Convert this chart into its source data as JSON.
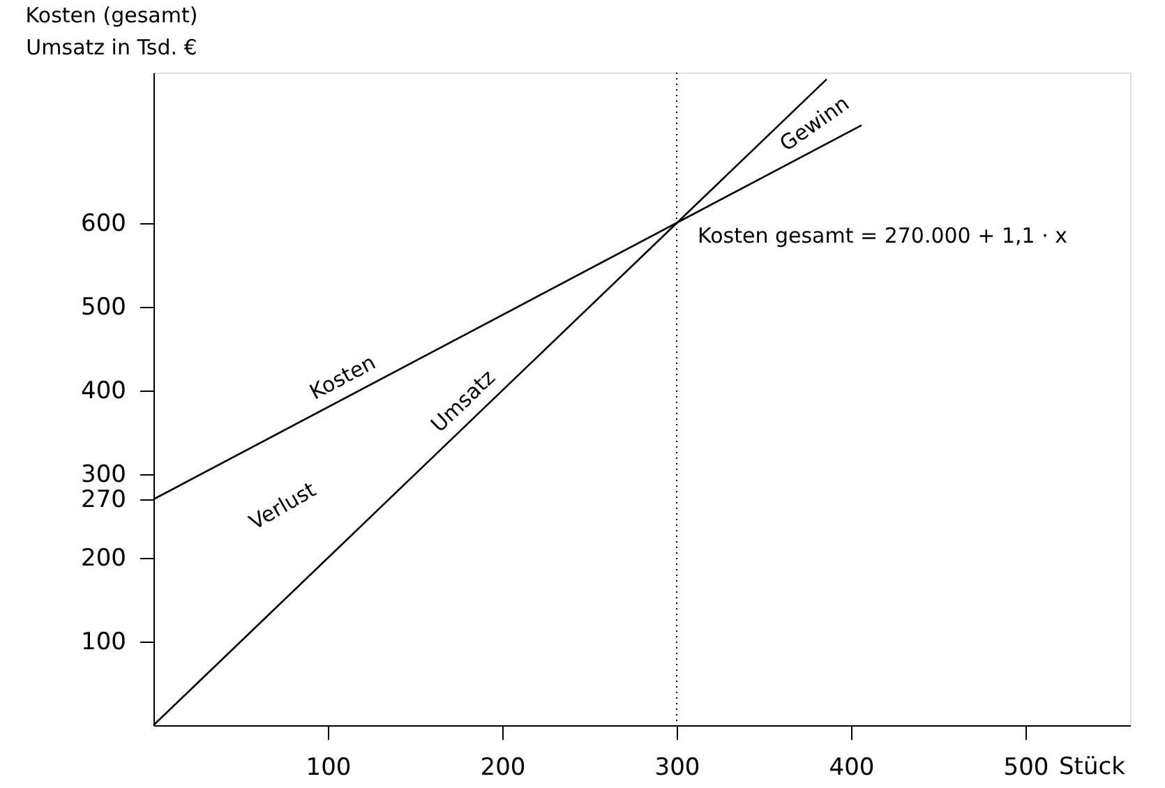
{
  "chart_data": {
    "type": "line",
    "xlabel": "Stück",
    "ylabel": "Kosten (gesamt)\nUmsatz in Tsd. €",
    "series": [
      {
        "name": "Kosten",
        "color": "#000000",
        "x": [
          0,
          406
        ],
        "values": [
          270,
          717
        ]
      },
      {
        "name": "Umsatz",
        "color": "#000000",
        "x": [
          0,
          386
        ],
        "values": [
          0,
          772
        ]
      }
    ],
    "xlim": [
      0,
      560
    ],
    "ylim": [
      0,
      780
    ],
    "xticks": [
      100,
      200,
      300,
      400,
      500
    ],
    "yticks": [
      100,
      200,
      270,
      300,
      400,
      500,
      600
    ],
    "ref_lines": [
      {
        "axis": "x",
        "value": 300,
        "label": null,
        "color": "#000000",
        "line_style": "dotted"
      }
    ],
    "annotations": [
      "Kosten gesamt = 270.000 + 1,1 · x",
      "Gewinn",
      "Verlust"
    ],
    "grid": false,
    "marker": "none",
    "line_style": "solid"
  }
}
